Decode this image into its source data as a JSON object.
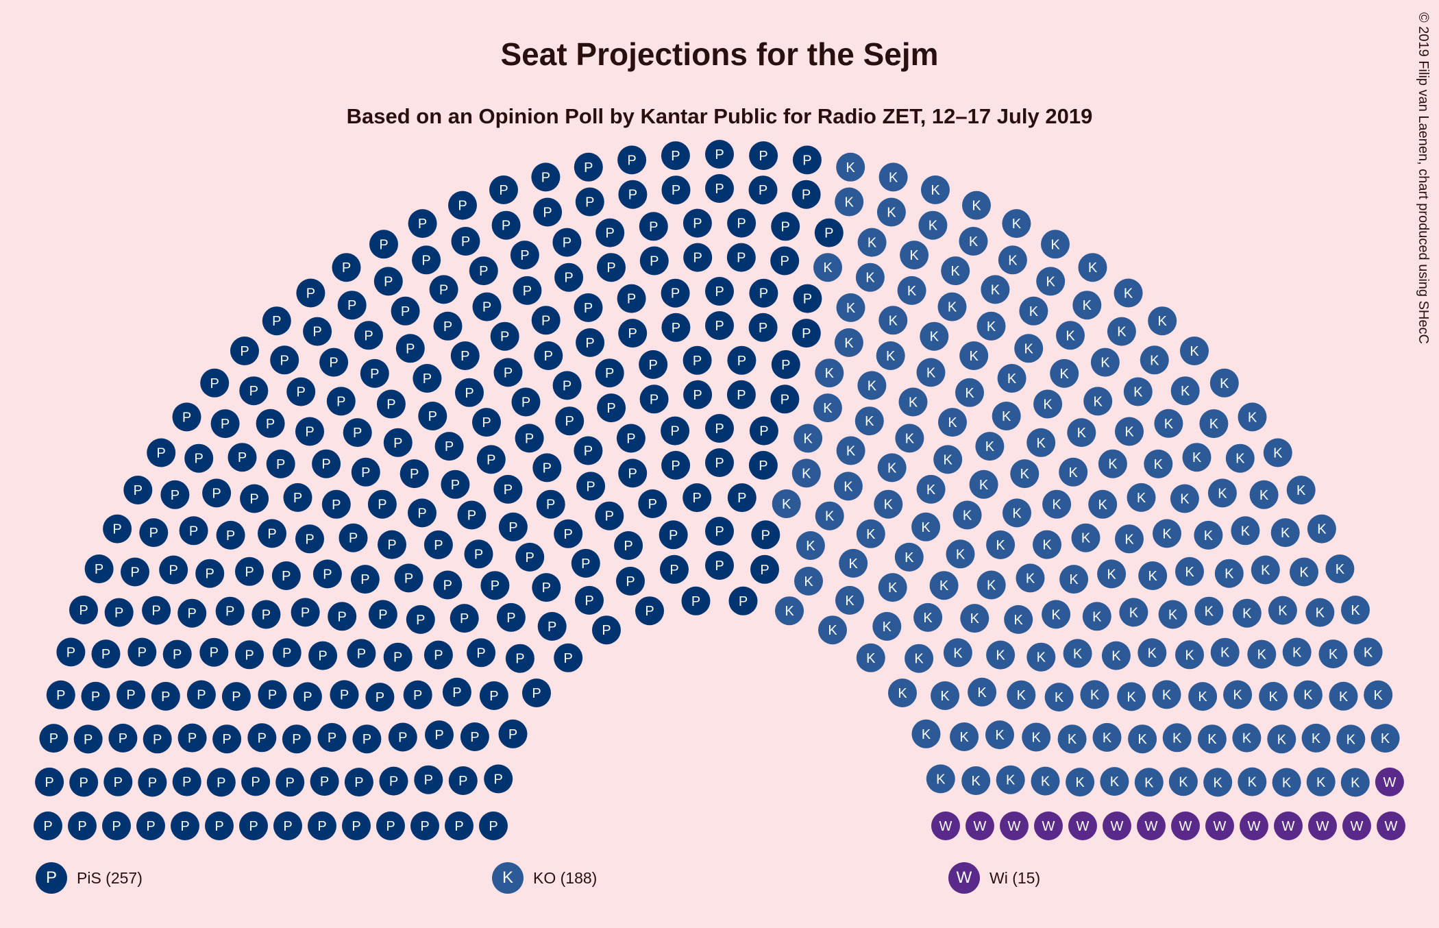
{
  "chart_data": {
    "type": "hemicycle",
    "title": "Seat Projections for the Sejm",
    "subtitle": "Based on an Opinion Poll by Kantar Public for Radio ZET, 12–17 July 2019",
    "credit": "© 2019 Filip van Laenen, chart produced using SHecC",
    "total_seats": 460,
    "rows": 14,
    "series": [
      {
        "name": "PiS",
        "seats": 257,
        "letter": "P",
        "color": "#003470",
        "legend": "PiS (257)"
      },
      {
        "name": "KO",
        "seats": 188,
        "letter": "K",
        "color": "#2c5a97",
        "legend": "KO (188)"
      },
      {
        "name": "Wi",
        "seats": 15,
        "letter": "W",
        "color": "#5a2a8a",
        "legend": "Wi (15)"
      }
    ]
  }
}
